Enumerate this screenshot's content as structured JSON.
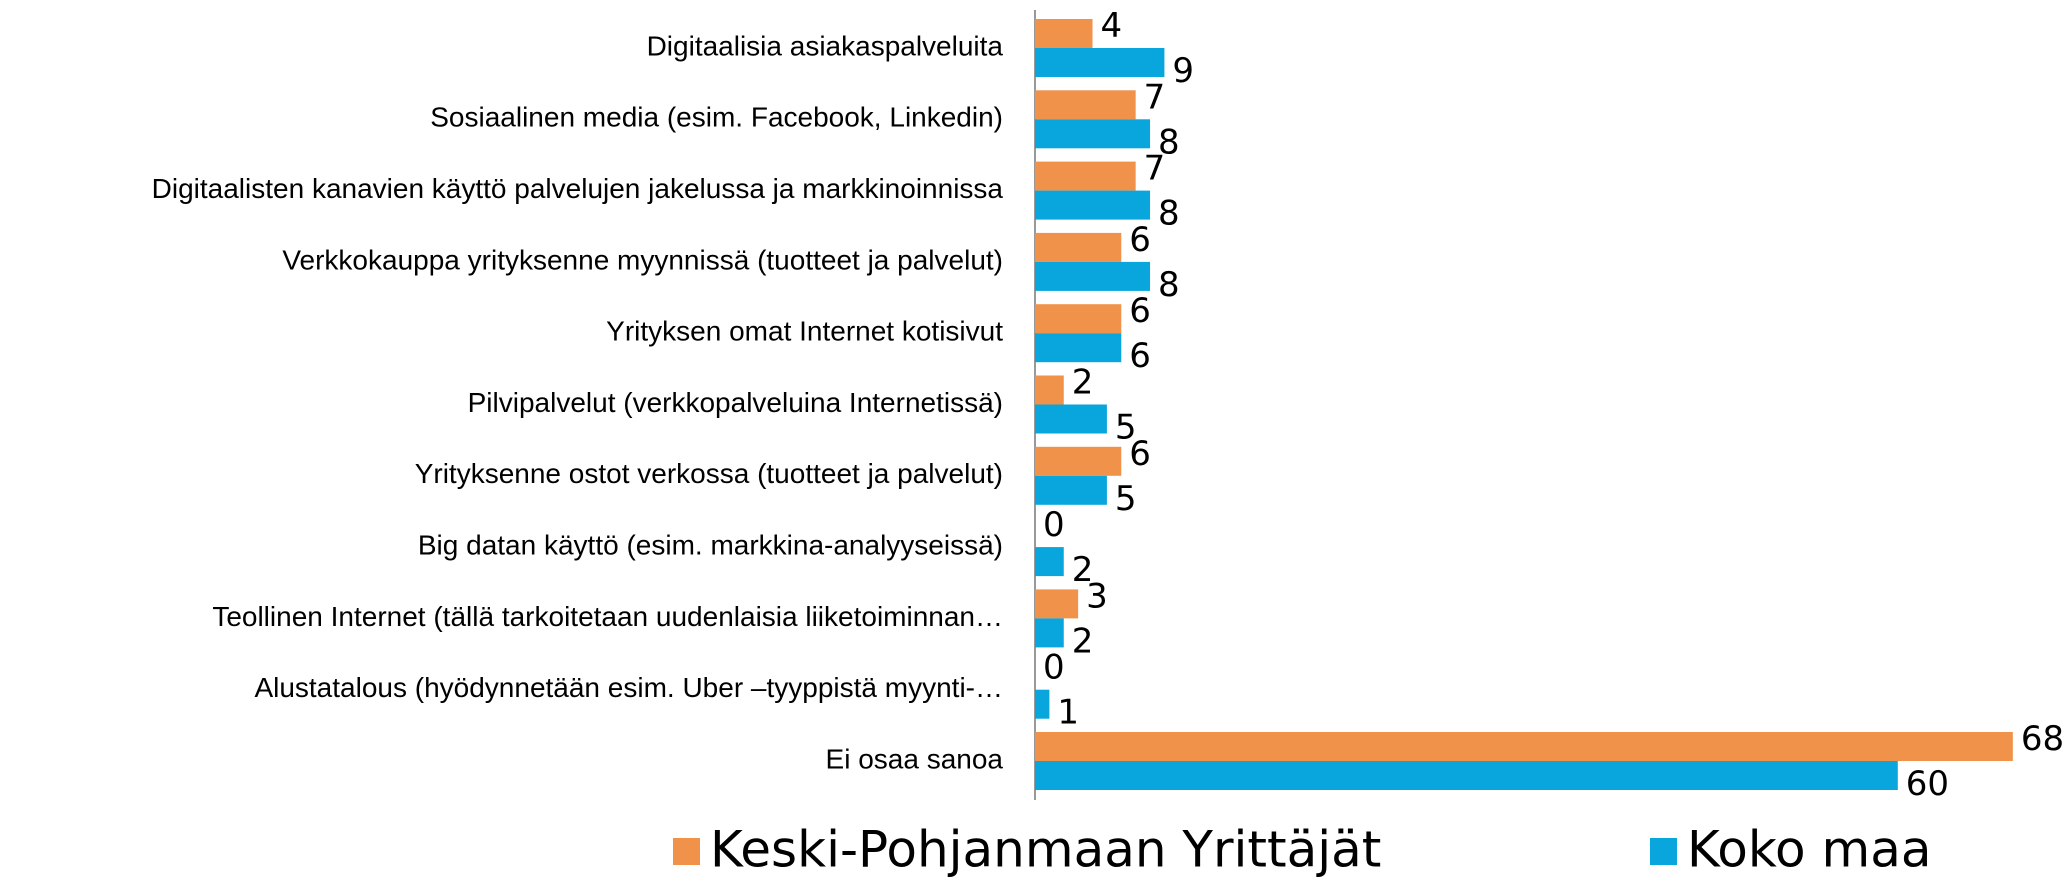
{
  "chart_data": {
    "type": "hbar",
    "categories": [
      "Digitaalisia asiakaspalveluita",
      "Sosiaalinen media (esim. Facebook, Linkedin)",
      "Digitaalisten kanavien käyttö palvelujen jakelussa ja markkinoinnissa",
      "Verkkokauppa yrityksenne myynnissä (tuotteet ja palvelut)",
      "Yrityksen omat Internet kotisivut",
      "Pilvipalvelut  (verkkopalveluina Internetissä)",
      "Yrityksenne ostot verkossa (tuotteet ja palvelut)",
      "Big datan käyttö (esim. markkina-analyyseissä)",
      "Teollinen Internet (tällä tarkoitetaan uudenlaisia liiketoiminnan…",
      "Alustatalous (hyödynnetään esim. Uber –tyyppistä myynti-…",
      "Ei osaa sanoa"
    ],
    "series": [
      {
        "name": "Keski-Pohjanmaan Yrittäjät",
        "color": "#f0924a",
        "values": [
          4,
          7,
          7,
          6,
          6,
          2,
          6,
          0,
          3,
          0,
          68
        ]
      },
      {
        "name": "Koko maa",
        "color": "#08a6dc",
        "values": [
          9,
          8,
          8,
          8,
          6,
          5,
          5,
          2,
          2,
          1,
          60
        ]
      }
    ],
    "legend": "bottom"
  }
}
